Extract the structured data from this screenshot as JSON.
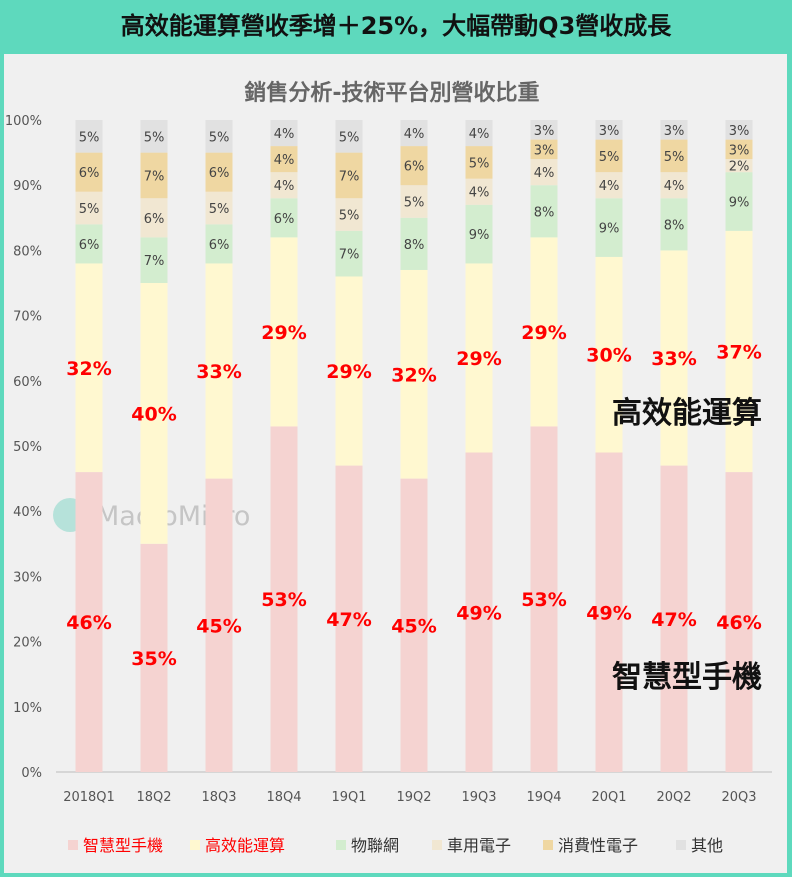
{
  "headline": "高效能運算營收季增＋25%，大幅帶動Q3營收成長",
  "watermark": "MacroMicro",
  "chart_data": {
    "type": "bar",
    "stacked": true,
    "title": "銷售分析-技術平台別營收比重",
    "xlabel": "",
    "ylabel": "",
    "ylim": [
      0,
      100
    ],
    "yticks": [
      "0%",
      "10%",
      "20%",
      "30%",
      "40%",
      "50%",
      "60%",
      "70%",
      "80%",
      "90%",
      "100%"
    ],
    "categories": [
      "2018Q1",
      "18Q2",
      "18Q3",
      "18Q4",
      "19Q1",
      "19Q2",
      "19Q3",
      "19Q4",
      "20Q1",
      "20Q2",
      "20Q3"
    ],
    "series": [
      {
        "name": "智慧型手機",
        "color": "#f5d3d1",
        "label_color": "#ff0000",
        "values": [
          46,
          35,
          45,
          53,
          47,
          45,
          49,
          53,
          49,
          47,
          46
        ]
      },
      {
        "name": "高效能運算",
        "color": "#fff8d0",
        "label_color": "#ff0000",
        "values": [
          32,
          40,
          33,
          29,
          29,
          32,
          29,
          29,
          30,
          33,
          37
        ]
      },
      {
        "name": "物聯網",
        "color": "#d3edcf",
        "label_color": "#444444",
        "values": [
          6,
          7,
          6,
          6,
          7,
          8,
          9,
          8,
          9,
          8,
          9
        ]
      },
      {
        "name": "車用電子",
        "color": "#f1e7d2",
        "label_color": "#444444",
        "values": [
          5,
          6,
          5,
          4,
          5,
          5,
          4,
          4,
          4,
          4,
          2
        ]
      },
      {
        "name": "消費性電子",
        "color": "#efd7a2",
        "label_color": "#444444",
        "values": [
          6,
          7,
          6,
          4,
          7,
          6,
          5,
          3,
          5,
          5,
          3
        ]
      },
      {
        "name": "其他",
        "color": "#e1e1e1",
        "label_color": "#444444",
        "values": [
          5,
          5,
          5,
          4,
          5,
          4,
          4,
          3,
          3,
          3,
          3
        ]
      }
    ],
    "annotations": [
      "高效能運算",
      "智慧型手機"
    ],
    "legend_position": "bottom",
    "grid": false
  }
}
